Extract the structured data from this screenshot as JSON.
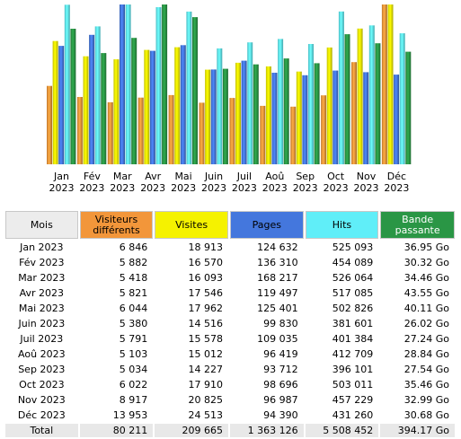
{
  "colors": {
    "visiteurs": "#f2963a",
    "visites": "#f5f200",
    "pages": "#4477dd",
    "hits": "#60eef8",
    "bande": "#2a9645"
  },
  "chart_data": {
    "type": "bar",
    "categories": [
      "Jan|2023",
      "Fév|2023",
      "Mar|2023",
      "Avr|2023",
      "Mai|2023",
      "Juin|2023",
      "Juil|2023",
      "Aoû|2023",
      "Sep|2023",
      "Oct|2023",
      "Nov|2023",
      "Déc|2023"
    ],
    "series": [
      {
        "name": "Visiteurs différents",
        "key": "visiteurs",
        "values": [
          6846,
          5882,
          5418,
          5821,
          6044,
          5380,
          5791,
          5103,
          5034,
          6022,
          8917,
          13953
        ]
      },
      {
        "name": "Visites",
        "key": "visites",
        "values": [
          18913,
          16570,
          16093,
          17546,
          17962,
          14516,
          15578,
          15012,
          14227,
          17910,
          20825,
          24513
        ]
      },
      {
        "name": "Pages",
        "key": "pages",
        "values": [
          124632,
          136310,
          168217,
          119497,
          125401,
          99830,
          109035,
          96419,
          93712,
          98696,
          96987,
          94390
        ]
      },
      {
        "name": "Hits",
        "key": "hits",
        "values": [
          525093,
          454089,
          526064,
          517085,
          502826,
          381601,
          401384,
          412709,
          396101,
          503011,
          457229,
          431260
        ]
      },
      {
        "name": "Bande passante",
        "key": "bande",
        "values": [
          36.95,
          30.32,
          34.46,
          43.55,
          40.11,
          26.02,
          27.24,
          28.84,
          27.54,
          35.46,
          32.99,
          30.68
        ],
        "unit": "Go"
      }
    ]
  },
  "table": {
    "headers": {
      "mois": "Mois",
      "visiteurs": "Visiteurs différents",
      "visites": "Visites",
      "pages": "Pages",
      "hits": "Hits",
      "bande": "Bande passante"
    },
    "rows": [
      {
        "mois": "Jan 2023",
        "visiteurs": "6 846",
        "visites": "18 913",
        "pages": "124 632",
        "hits": "525 093",
        "bande": "36.95 Go"
      },
      {
        "mois": "Fév 2023",
        "visiteurs": "5 882",
        "visites": "16 570",
        "pages": "136 310",
        "hits": "454 089",
        "bande": "30.32 Go"
      },
      {
        "mois": "Mar 2023",
        "visiteurs": "5 418",
        "visites": "16 093",
        "pages": "168 217",
        "hits": "526 064",
        "bande": "34.46 Go"
      },
      {
        "mois": "Avr 2023",
        "visiteurs": "5 821",
        "visites": "17 546",
        "pages": "119 497",
        "hits": "517 085",
        "bande": "43.55 Go"
      },
      {
        "mois": "Mai 2023",
        "visiteurs": "6 044",
        "visites": "17 962",
        "pages": "125 401",
        "hits": "502 826",
        "bande": "40.11 Go"
      },
      {
        "mois": "Juin 2023",
        "visiteurs": "5 380",
        "visites": "14 516",
        "pages": "99 830",
        "hits": "381 601",
        "bande": "26.02 Go"
      },
      {
        "mois": "Juil 2023",
        "visiteurs": "5 791",
        "visites": "15 578",
        "pages": "109 035",
        "hits": "401 384",
        "bande": "27.24 Go"
      },
      {
        "mois": "Aoû 2023",
        "visiteurs": "5 103",
        "visites": "15 012",
        "pages": "96 419",
        "hits": "412 709",
        "bande": "28.84 Go"
      },
      {
        "mois": "Sep 2023",
        "visiteurs": "5 034",
        "visites": "14 227",
        "pages": "93 712",
        "hits": "396 101",
        "bande": "27.54 Go"
      },
      {
        "mois": "Oct 2023",
        "visiteurs": "6 022",
        "visites": "17 910",
        "pages": "98 696",
        "hits": "503 011",
        "bande": "35.46 Go"
      },
      {
        "mois": "Nov 2023",
        "visiteurs": "8 917",
        "visites": "20 825",
        "pages": "96 987",
        "hits": "457 229",
        "bande": "32.99 Go"
      },
      {
        "mois": "Déc 2023",
        "visiteurs": "13 953",
        "visites": "24 513",
        "pages": "94 390",
        "hits": "431 260",
        "bande": "30.68 Go"
      }
    ],
    "total": {
      "mois": "Total",
      "visiteurs": "80 211",
      "visites": "209 665",
      "pages": "1 363 126",
      "hits": "5 508 452",
      "bande": "394.17 Go"
    }
  }
}
